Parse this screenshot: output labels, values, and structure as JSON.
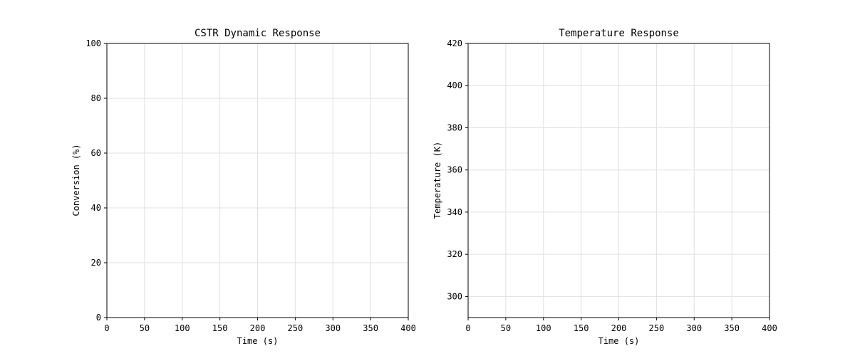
{
  "chart_data": [
    {
      "type": "line",
      "title": "CSTR Dynamic Response",
      "xlabel": "Time (s)",
      "ylabel": "Conversion (%)",
      "xlim": [
        0,
        400
      ],
      "ylim": [
        0,
        100
      ],
      "xticks": [
        0,
        50,
        100,
        150,
        200,
        250,
        300,
        350,
        400
      ],
      "yticks": [
        0,
        20,
        40,
        60,
        80,
        100
      ],
      "grid": true,
      "series": []
    },
    {
      "type": "line",
      "title": "Temperature Response",
      "xlabel": "Time (s)",
      "ylabel": "Temperature (K)",
      "xlim": [
        0,
        400
      ],
      "ylim": [
        290,
        420
      ],
      "xticks": [
        0,
        50,
        100,
        150,
        200,
        250,
        300,
        350,
        400
      ],
      "yticks": [
        300,
        320,
        340,
        360,
        380,
        400,
        420
      ],
      "grid": true,
      "series": []
    }
  ]
}
